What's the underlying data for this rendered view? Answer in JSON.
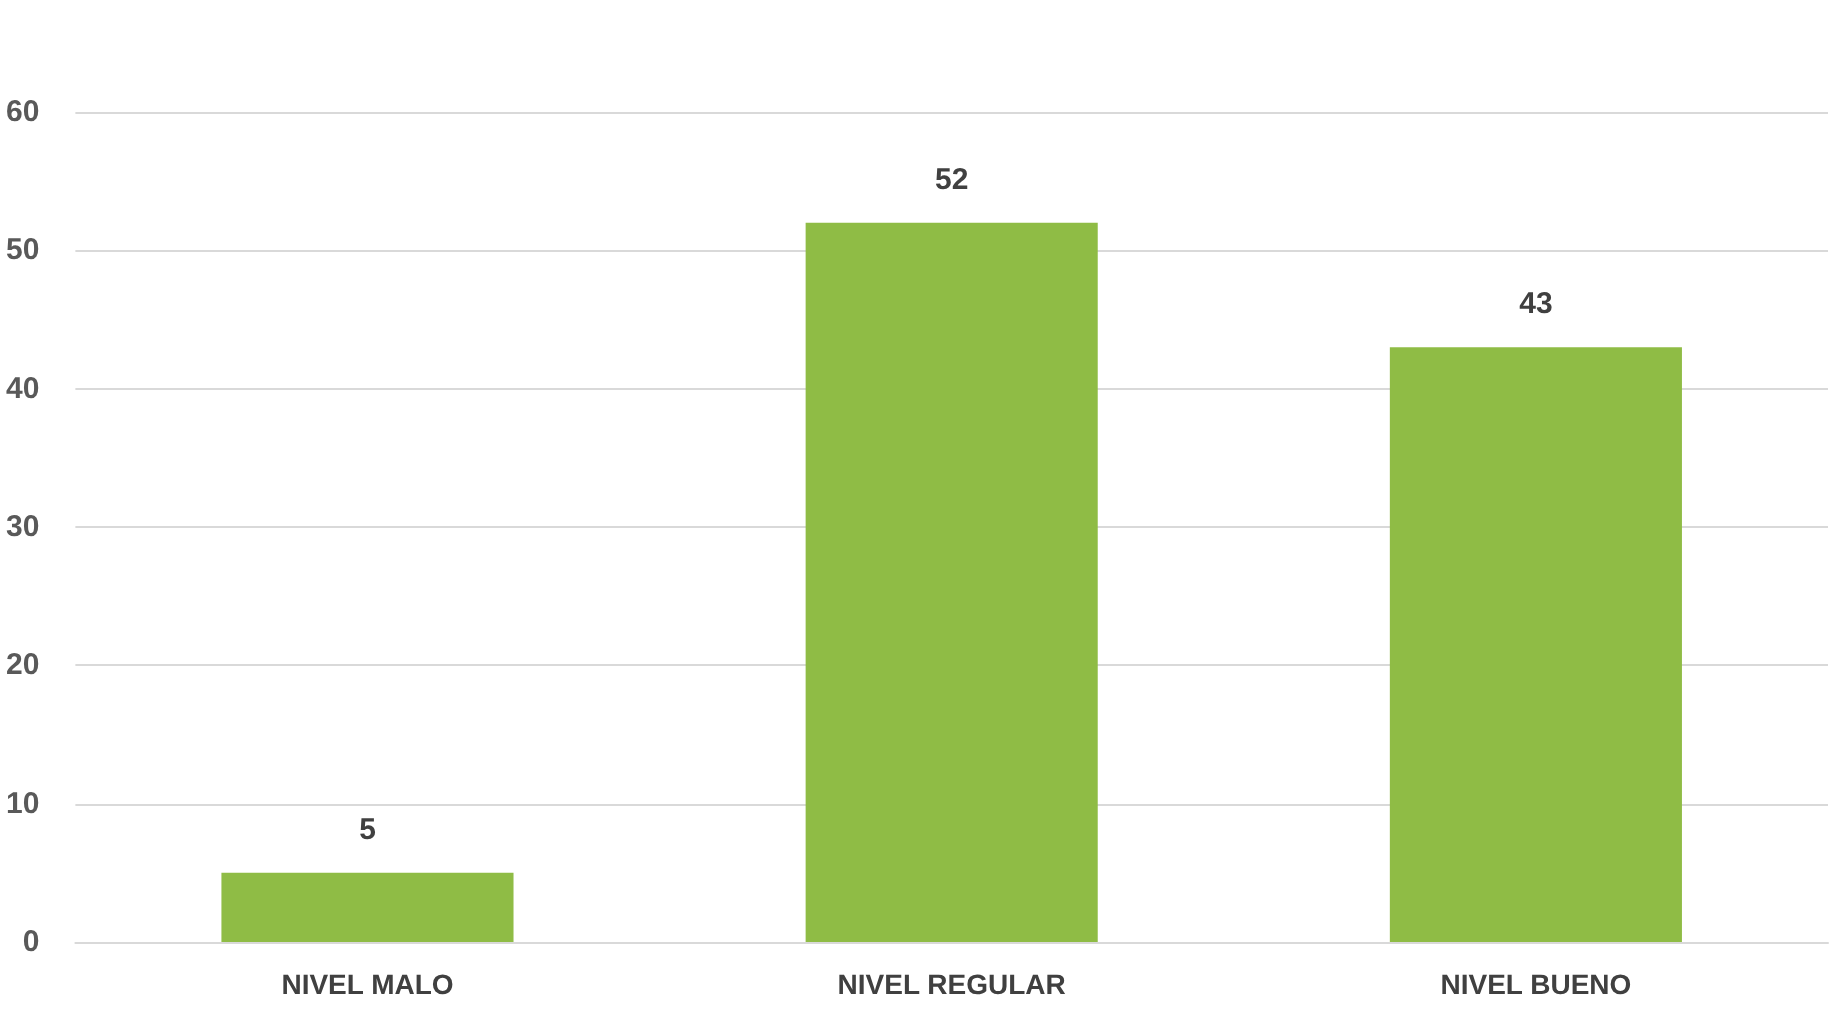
{
  "chart_data": {
    "type": "bar",
    "categories": [
      "NIVEL MALO",
      "NIVEL REGULAR",
      "NIVEL BUENO"
    ],
    "values": [
      5,
      52,
      43
    ],
    "color": "#8fbc45",
    "ylim": [
      0,
      60
    ],
    "yticks": [
      0,
      10,
      20,
      30,
      40,
      50,
      60
    ],
    "grid": "y",
    "data_labels": true
  }
}
